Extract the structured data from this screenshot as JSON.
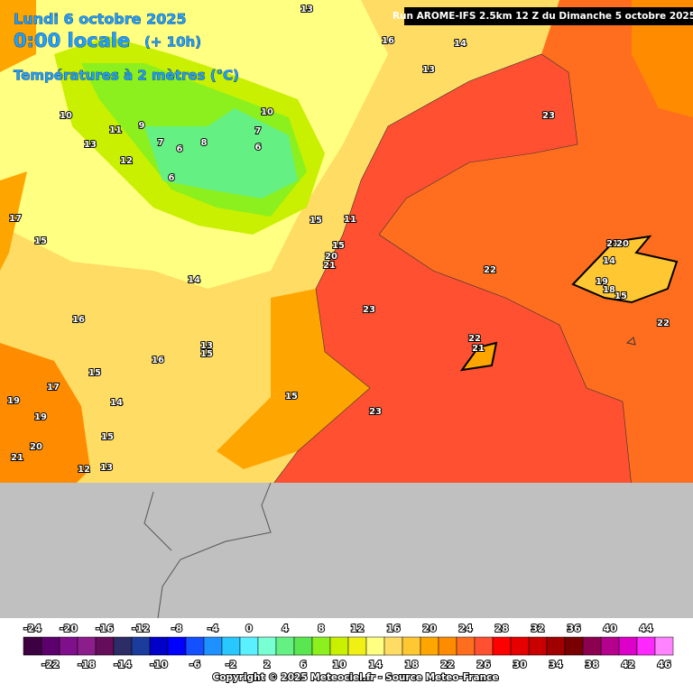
{
  "header": {
    "date": "Lundi 6 octobre 2025",
    "time": "0:00 locale",
    "lead": "(+ 10h)",
    "field": "Températures à 2 mètres (°C)",
    "run": "Run AROME-IFS 2.5km 12 Z du Dimanche 5 octobre 2025"
  },
  "contour_labels": [
    13,
    16,
    14,
    13,
    23,
    10,
    11,
    9,
    13,
    12,
    7,
    6,
    8,
    6,
    10,
    7,
    6,
    17,
    15,
    15,
    11,
    15,
    20,
    21,
    14,
    22,
    23,
    16,
    13,
    15,
    16,
    15,
    17,
    19,
    14,
    19,
    15,
    23,
    15,
    20,
    21,
    12,
    13,
    22,
    21,
    21,
    20,
    14,
    15,
    19,
    18,
    22
  ],
  "legend": [
    {
      "value": -24,
      "color": "#3d0040"
    },
    {
      "value": -22,
      "color": "#5c006b"
    },
    {
      "value": -20,
      "color": "#7f0f8a"
    },
    {
      "value": -18,
      "color": "#8c1e8c"
    },
    {
      "value": -16,
      "color": "#650c5a"
    },
    {
      "value": -14,
      "color": "#2c2c66"
    },
    {
      "value": -12,
      "color": "#1c3c9c"
    },
    {
      "value": -10,
      "color": "#0000c8"
    },
    {
      "value": -8,
      "color": "#0000ff"
    },
    {
      "value": -6,
      "color": "#1450ff"
    },
    {
      "value": -4,
      "color": "#1e90ff"
    },
    {
      "value": -2,
      "color": "#28c8ff"
    },
    {
      "value": 0,
      "color": "#5af0ff"
    },
    {
      "value": 2,
      "color": "#78ffd2"
    },
    {
      "value": 4,
      "color": "#64f082"
    },
    {
      "value": 6,
      "color": "#5ae650"
    },
    {
      "value": 8,
      "color": "#8cf01e"
    },
    {
      "value": 10,
      "color": "#c8f000"
    },
    {
      "value": 12,
      "color": "#f0f014"
    },
    {
      "value": 14,
      "color": "#ffff82"
    },
    {
      "value": 16,
      "color": "#ffdc64"
    },
    {
      "value": 18,
      "color": "#ffc832"
    },
    {
      "value": 20,
      "color": "#ffa500"
    },
    {
      "value": 22,
      "color": "#ff8c00"
    },
    {
      "value": 24,
      "color": "#ff6e1e"
    },
    {
      "value": 26,
      "color": "#ff5032"
    },
    {
      "value": 28,
      "color": "#ff0000"
    },
    {
      "value": 30,
      "color": "#e60000"
    },
    {
      "value": 32,
      "color": "#c80000"
    },
    {
      "value": 34,
      "color": "#a00000"
    },
    {
      "value": 36,
      "color": "#780000"
    },
    {
      "value": 38,
      "color": "#8c0050"
    },
    {
      "value": 40,
      "color": "#b4008c"
    },
    {
      "value": 42,
      "color": "#dc00c8"
    },
    {
      "value": 44,
      "color": "#ff28ff"
    },
    {
      "value": 46,
      "color": "#ff82ff"
    }
  ],
  "copyright": "Copyright © 2025 Meteociel.fr - Source Meteo-France"
}
